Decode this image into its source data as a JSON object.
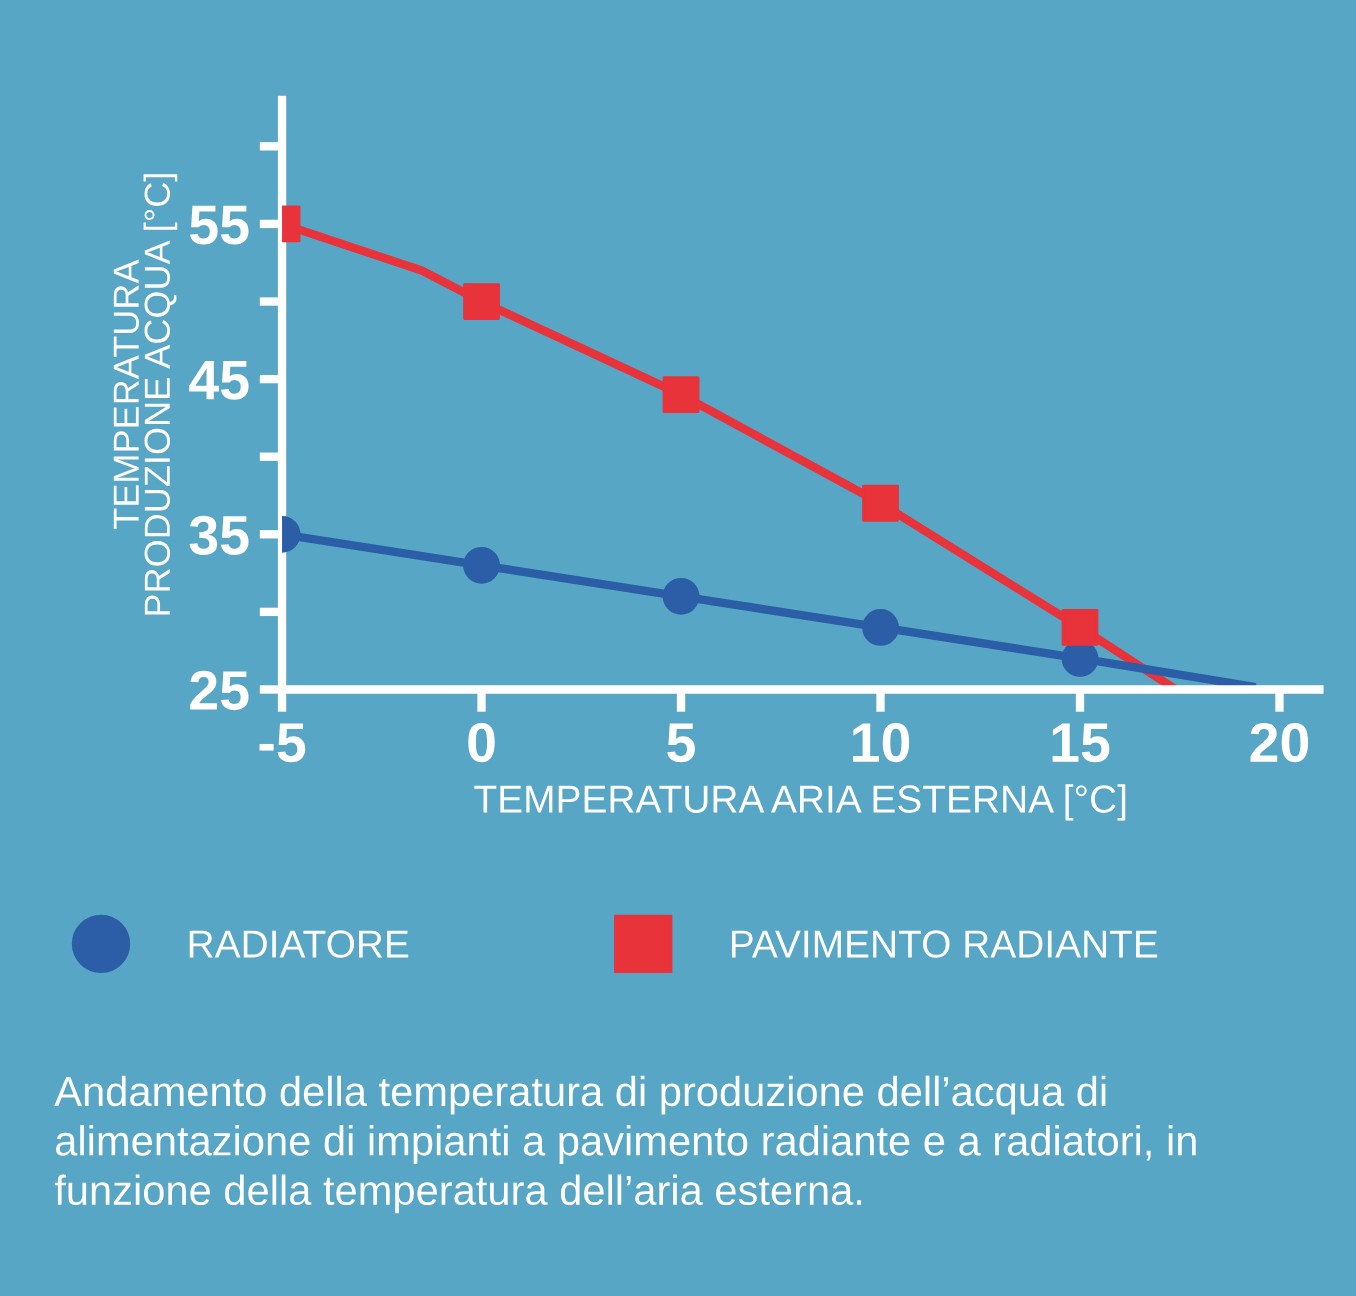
{
  "chart_data": {
    "type": "line",
    "xlabel": "TEMPERATURA ARIA ESTERNA [°C]",
    "ylabel": "TEMPERATURA\nPRODUZIONE ACQUA [°C]",
    "xlim": [
      -5,
      21
    ],
    "xticks": [
      -5,
      0,
      5,
      10,
      15,
      20
    ],
    "ylim": [
      25,
      63
    ],
    "yticks": [
      25,
      {
        "value": 30,
        "label": null
      },
      35,
      {
        "value": 40,
        "label": null
      },
      45,
      {
        "value": 50,
        "label": null
      },
      55,
      {
        "value": 60,
        "label": null
      }
    ],
    "grid": false,
    "legend": "bottom",
    "series": [
      {
        "color": "#e8333b",
        "x": [
          -5,
          -1.5,
          0,
          5,
          10,
          15,
          17.4
        ],
        "values": [
          55,
          52,
          50,
          44,
          37,
          29,
          25
        ],
        "marker": "none"
      },
      {
        "color": "#2c5ea8",
        "x": [
          -5,
          0,
          5,
          10,
          15,
          19.3
        ],
        "values": [
          35,
          33,
          31,
          29,
          27,
          25.2
        ],
        "marker": "none"
      },
      {
        "type": "scatter",
        "name": "RADIATORE",
        "color": "#2c5ea8",
        "x": [
          -5,
          0,
          5,
          10,
          15
        ],
        "values": [
          35,
          33,
          31,
          29,
          27
        ],
        "marker": "circle"
      },
      {
        "type": "scatter",
        "name": "PAVIMENTO RADIANTE",
        "color": "#e8333b",
        "x": [
          -5,
          0,
          5,
          10,
          15
        ],
        "values": [
          55,
          50,
          44,
          37,
          29
        ],
        "marker": "square"
      }
    ],
    "annotations": [
      "Andamento della temperatura di produzione dell’acqua di alimentazione di impianti a pavimento radiante e a radiatori, in funzione della temperatura dell’aria esterna."
    ]
  }
}
